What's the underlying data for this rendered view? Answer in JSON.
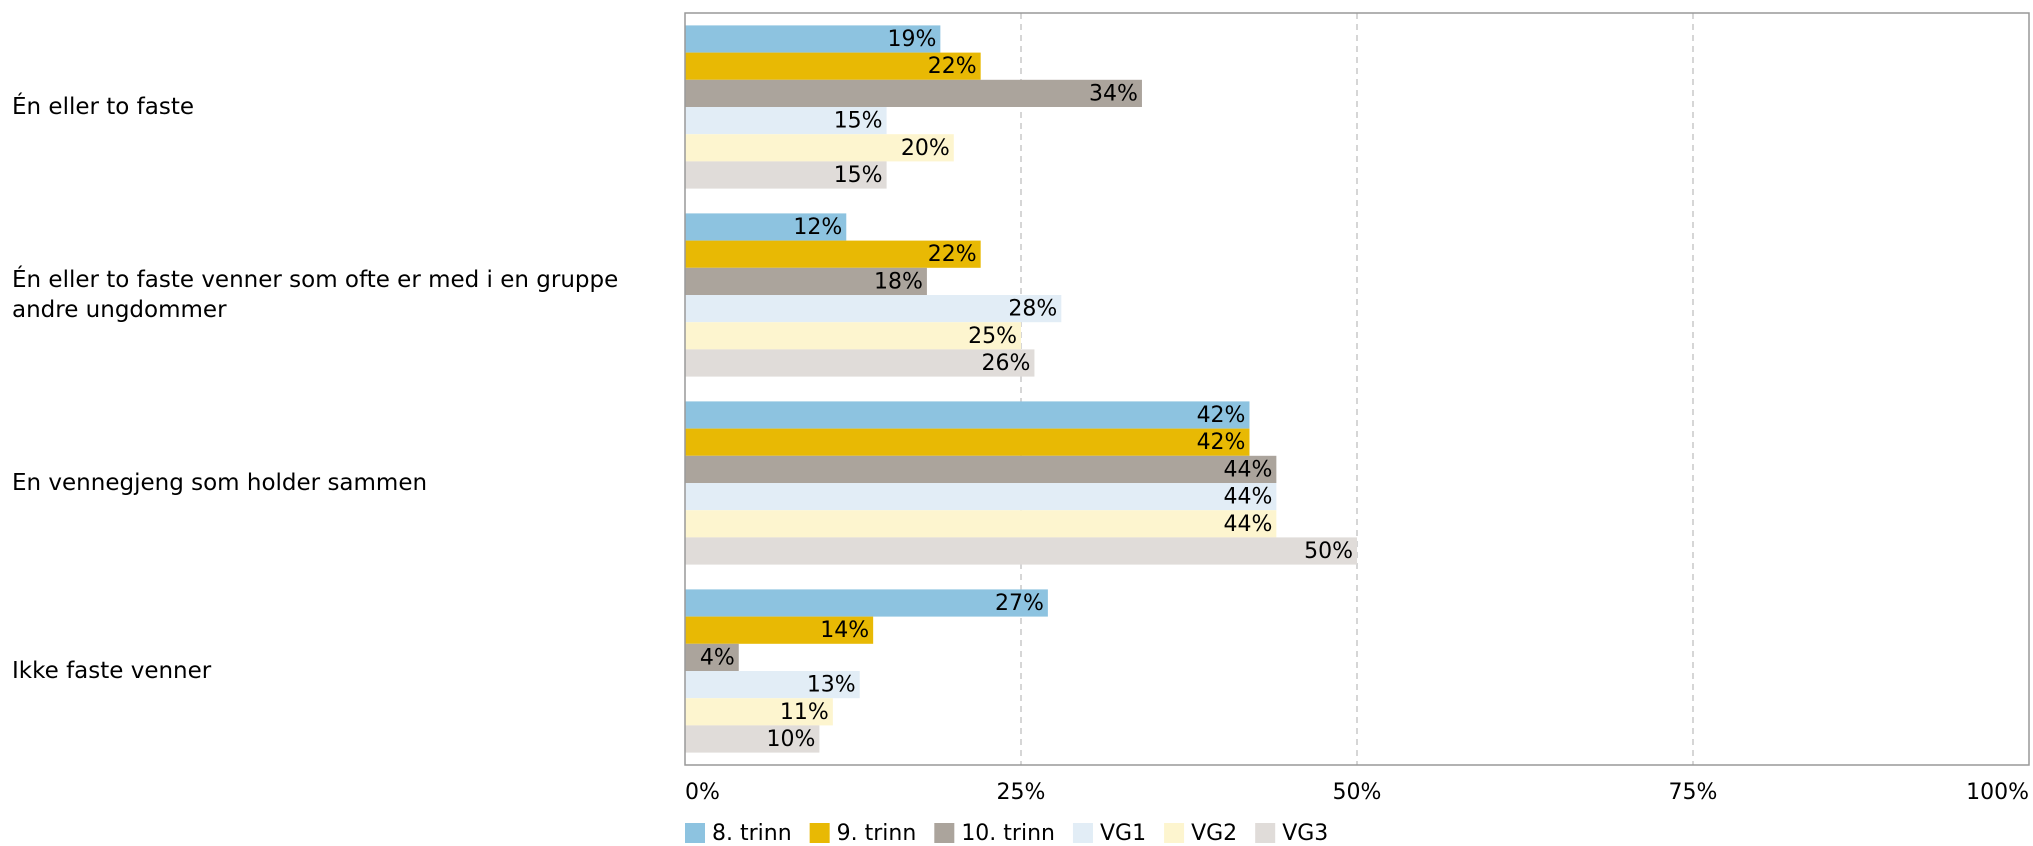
{
  "chart_data": {
    "type": "hbar",
    "categories": [
      "Én eller to faste",
      "Én eller to faste venner som ofte er med i en gruppe andre ungdommer",
      "En vennegjeng som holder sammen",
      "Ikke faste venner"
    ],
    "series": [
      {
        "name": "8. trinn",
        "color": "#8dc3e0",
        "values": [
          19,
          12,
          42,
          27
        ],
        "value_labels": [
          "19%",
          "12%",
          "42%",
          "27%"
        ]
      },
      {
        "name": "9. trinn",
        "color": "#e8b904",
        "values": [
          22,
          22,
          42,
          14
        ],
        "value_labels": [
          "22%",
          "22%",
          "42%",
          "14%"
        ]
      },
      {
        "name": "10. trinn",
        "color": "#aba49c",
        "values": [
          34,
          18,
          44,
          4
        ],
        "value_labels": [
          "34%",
          "18%",
          "44%",
          "4%"
        ]
      },
      {
        "name": "VG1",
        "color": "#e2edf6",
        "values": [
          15,
          28,
          44,
          13
        ],
        "value_labels": [
          "15%",
          "28%",
          "44%",
          "13%"
        ]
      },
      {
        "name": "VG2",
        "color": "#fdf5cf",
        "values": [
          20,
          25,
          44,
          11
        ],
        "value_labels": [
          "20%",
          "25%",
          "44%",
          "11%"
        ]
      },
      {
        "name": "VG3",
        "color": "#e0dcd9",
        "values": [
          15,
          26,
          50,
          10
        ],
        "value_labels": [
          "15%",
          "26%",
          "50%",
          "10%"
        ]
      }
    ],
    "xlim": [
      0,
      100
    ],
    "xticks": [
      {
        "value": 0,
        "label": "0%"
      },
      {
        "value": 25,
        "label": "25%"
      },
      {
        "value": 50,
        "label": "50%"
      },
      {
        "value": 75,
        "label": "75%"
      },
      {
        "value": 100,
        "label": "100%"
      }
    ],
    "grid": true,
    "legend": "bottom"
  }
}
